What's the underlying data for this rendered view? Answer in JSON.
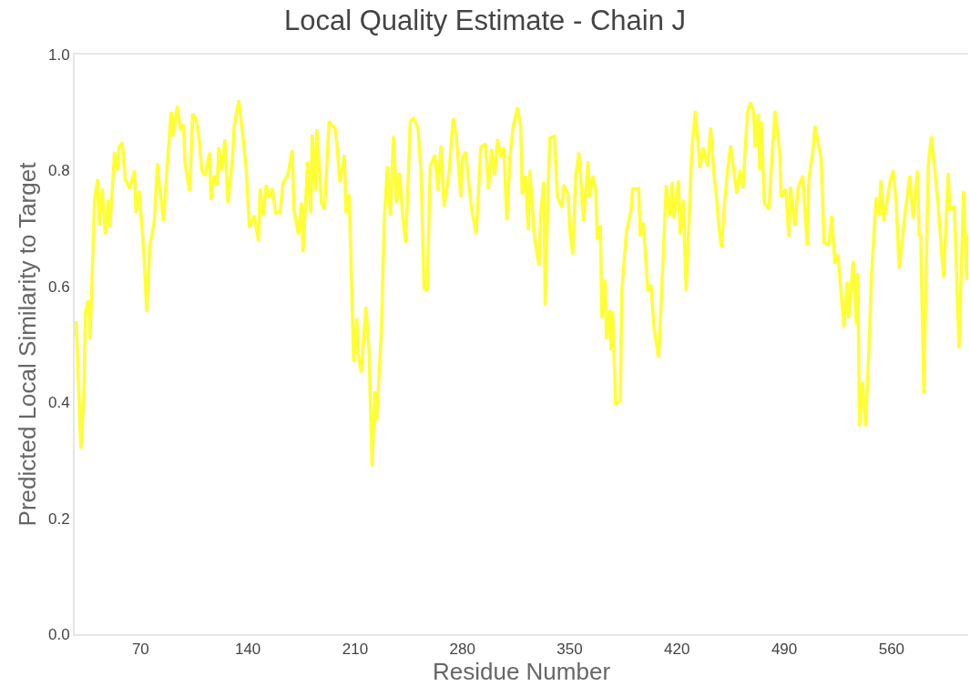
{
  "chart_data": {
    "type": "line",
    "title": "Local Quality Estimate - Chain J",
    "xlabel": "Residue Number",
    "ylabel": "Predicted Local Similarity to Target",
    "xlim": [
      27,
      610
    ],
    "xticks": [
      70,
      140,
      210,
      280,
      350,
      420,
      490,
      560
    ],
    "ylim": [
      0,
      1
    ],
    "yticks": [
      {
        "value": 0,
        "label": "0.0"
      },
      0.2,
      0.4,
      0.6,
      0.8,
      {
        "value": 1,
        "label": "1.0"
      }
    ],
    "grid": false,
    "marker": "none",
    "line_style": "solid",
    "series": [
      {
        "color": "#ffff33",
        "x": [
          27,
          28,
          31,
          33,
          34,
          36,
          37,
          40,
          42,
          43,
          45,
          47,
          49,
          50,
          53,
          55,
          56,
          58,
          60,
          63,
          66,
          67,
          69,
          72,
          74,
          76,
          79,
          81,
          82,
          85,
          87,
          90,
          91,
          94,
          96,
          98,
          99,
          102,
          104,
          106,
          108,
          110,
          112,
          115,
          116,
          118,
          120,
          121,
          123,
          125,
          127,
          130,
          131,
          134,
          137,
          139,
          141,
          144,
          147,
          148,
          150,
          152,
          154,
          156,
          158,
          161,
          163,
          166,
          169,
          170,
          173,
          175,
          176,
          179,
          181,
          182,
          184,
          185,
          188,
          190,
          193,
          197,
          198,
          200,
          203,
          204,
          206,
          207,
          209,
          211,
          212,
          214,
          217,
          219,
          221,
          223,
          224,
          227,
          229,
          231,
          233,
          235,
          237,
          239,
          241,
          243,
          246,
          248,
          251,
          253,
          255,
          257,
          259,
          262,
          264,
          266,
          268,
          271,
          274,
          276,
          279,
          280,
          282,
          286,
          289,
          292,
          295,
          297,
          299,
          301,
          303,
          305,
          307,
          309,
          311,
          313,
          316,
          318,
          319,
          321,
          323,
          324,
          327,
          330,
          331,
          333,
          334,
          336,
          337,
          340,
          342,
          345,
          346,
          349,
          350,
          352,
          354,
          356,
          359,
          362,
          363,
          365,
          367,
          368,
          370,
          371,
          373,
          374,
          376,
          377,
          378,
          380,
          383,
          384,
          387,
          390,
          391,
          395,
          396,
          398,
          401,
          403,
          405,
          408,
          411,
          413,
          415,
          417,
          418,
          421,
          422,
          424,
          426,
          429,
          430,
          432,
          435,
          437,
          440,
          442,
          444,
          446,
          447,
          449,
          451,
          453,
          455,
          459,
          461,
          463,
          466,
          468,
          470,
          471,
          473,
          474,
          475,
          477,
          480,
          482,
          484,
          487,
          488,
          491,
          493,
          494,
          497,
          499,
          502,
          505,
          506,
          509,
          510,
          514,
          516,
          519,
          521,
          523,
          525,
          529,
          531,
          532,
          535,
          537,
          538,
          539,
          541,
          543,
          545,
          547,
          550,
          552,
          553,
          555,
          559,
          561,
          563,
          565,
          568,
          570,
          572,
          574,
          577,
          578,
          579,
          581,
          584,
          586,
          590,
          594,
          597,
          598,
          601,
          604,
          607,
          609,
          610
        ],
        "values": [
          0.513,
          0.54,
          0.32,
          0.414,
          0.556,
          0.576,
          0.509,
          0.749,
          0.785,
          0.706,
          0.769,
          0.69,
          0.749,
          0.702,
          0.832,
          0.8,
          0.84,
          0.848,
          0.785,
          0.769,
          0.8,
          0.727,
          0.765,
          0.666,
          0.556,
          0.67,
          0.713,
          0.812,
          0.78,
          0.713,
          0.796,
          0.901,
          0.859,
          0.911,
          0.87,
          0.879,
          0.812,
          0.765,
          0.898,
          0.89,
          0.859,
          0.8,
          0.791,
          0.831,
          0.749,
          0.791,
          0.775,
          0.84,
          0.8,
          0.854,
          0.744,
          0.823,
          0.874,
          0.921,
          0.854,
          0.8,
          0.702,
          0.722,
          0.678,
          0.769,
          0.722,
          0.775,
          0.754,
          0.769,
          0.727,
          0.727,
          0.78,
          0.791,
          0.835,
          0.733,
          0.69,
          0.744,
          0.659,
          0.815,
          0.727,
          0.862,
          0.765,
          0.871,
          0.744,
          0.733,
          0.885,
          0.871,
          0.848,
          0.78,
          0.827,
          0.727,
          0.759,
          0.67,
          0.471,
          0.545,
          0.482,
          0.451,
          0.565,
          0.493,
          0.29,
          0.419,
          0.367,
          0.518,
          0.713,
          0.807,
          0.722,
          0.859,
          0.744,
          0.796,
          0.722,
          0.675,
          0.885,
          0.89,
          0.874,
          0.796,
          0.597,
          0.592,
          0.807,
          0.827,
          0.765,
          0.843,
          0.738,
          0.791,
          0.89,
          0.859,
          0.754,
          0.823,
          0.832,
          0.733,
          0.69,
          0.84,
          0.846,
          0.768,
          0.837,
          0.791,
          0.854,
          0.823,
          0.84,
          0.714,
          0.824,
          0.874,
          0.909,
          0.874,
          0.759,
          0.791,
          0.697,
          0.8,
          0.686,
          0.636,
          0.722,
          0.78,
          0.568,
          0.775,
          0.856,
          0.859,
          0.754,
          0.736,
          0.775,
          0.759,
          0.697,
          0.655,
          0.793,
          0.831,
          0.713,
          0.816,
          0.754,
          0.791,
          0.765,
          0.681,
          0.706,
          0.545,
          0.611,
          0.509,
          0.56,
          0.49,
          0.556,
          0.396,
          0.403,
          0.592,
          0.694,
          0.73,
          0.768,
          0.769,
          0.686,
          0.71,
          0.592,
          0.603,
          0.529,
          0.477,
          0.65,
          0.775,
          0.722,
          0.78,
          0.717,
          0.783,
          0.69,
          0.749,
          0.592,
          0.791,
          0.846,
          0.903,
          0.804,
          0.84,
          0.807,
          0.874,
          0.796,
          0.749,
          0.713,
          0.667,
          0.744,
          0.8,
          0.843,
          0.76,
          0.8,
          0.769,
          0.901,
          0.917,
          0.901,
          0.84,
          0.898,
          0.8,
          0.885,
          0.744,
          0.733,
          0.824,
          0.903,
          0.832,
          0.754,
          0.768,
          0.686,
          0.772,
          0.705,
          0.769,
          0.791,
          0.67,
          0.785,
          0.84,
          0.877,
          0.823,
          0.675,
          0.673,
          0.722,
          0.639,
          0.655,
          0.529,
          0.608,
          0.545,
          0.644,
          0.534,
          0.623,
          0.359,
          0.435,
          0.359,
          0.477,
          0.623,
          0.754,
          0.722,
          0.783,
          0.713,
          0.78,
          0.8,
          0.746,
          0.631,
          0.706,
          0.752,
          0.791,
          0.717,
          0.8,
          0.686,
          0.69,
          0.416,
          0.812,
          0.859,
          0.754,
          0.615,
          0.796,
          0.733,
          0.738,
          0.493,
          0.765,
          0.611,
          0.689
        ]
      }
    ]
  }
}
